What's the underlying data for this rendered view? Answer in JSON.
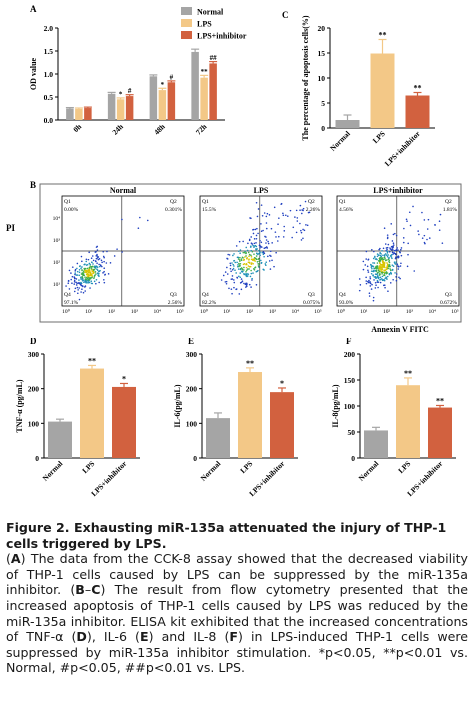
{
  "colors": {
    "normal": "#a5a5a5",
    "lps": "#f3c887",
    "inhibitor": "#d2613f"
  },
  "panel_a": {
    "letter": "A",
    "legend": [
      "Normal",
      "LPS",
      "LPS+inhibitor"
    ],
    "chart_data": {
      "type": "bar",
      "categories": [
        "0h",
        "24h",
        "48h",
        "72h"
      ],
      "series": [
        {
          "name": "Normal",
          "values": [
            0.25,
            0.57,
            0.95,
            1.48
          ],
          "errors": [
            0.02,
            0.03,
            0.03,
            0.06
          ]
        },
        {
          "name": "LPS",
          "values": [
            0.24,
            0.45,
            0.65,
            0.92
          ],
          "errors": [
            0.02,
            0.03,
            0.04,
            0.05
          ]
        },
        {
          "name": "LPS+inhibitor",
          "values": [
            0.26,
            0.52,
            0.82,
            1.23
          ],
          "errors": [
            0.02,
            0.03,
            0.03,
            0.04
          ]
        }
      ],
      "sig": [
        [
          "",
          "",
          ""
        ],
        [
          "",
          "*",
          "#"
        ],
        [
          "",
          "*",
          "#"
        ],
        [
          "",
          "**",
          "##"
        ]
      ],
      "ylabel": "OD value",
      "ylim": [
        0,
        2.0
      ],
      "yticks": [
        "0.0",
        "0.5",
        "1.0",
        "1.5",
        "2.0"
      ]
    }
  },
  "panel_c": {
    "letter": "C",
    "chart_data": {
      "type": "bar",
      "categories": [
        "Normal",
        "LPS",
        "LPS+inhibitor"
      ],
      "values": [
        1.6,
        14.9,
        6.5
      ],
      "errors": [
        1.0,
        2.8,
        0.6
      ],
      "sig": [
        "",
        "**",
        "**"
      ],
      "ylabel": "The percentage of apoptosis cells(%)",
      "ylim": [
        0,
        20
      ],
      "yticks": [
        "0",
        "5",
        "10",
        "15",
        "20"
      ]
    }
  },
  "panel_b": {
    "letter": "B",
    "groups": [
      {
        "title": "Normal",
        "q1": "0.00%",
        "q2": "0.301%",
        "q3": "2.56%",
        "q4": "97.1%"
      },
      {
        "title": "LPS",
        "q1": "15.5%",
        "q2": "2.26%",
        "q3": "0.075%",
        "q4": "82.2%"
      },
      {
        "title": "LPS+inhibitor",
        "q1": "4.56%",
        "q2": "1.81%",
        "q3": "0.672%",
        "q4": "93.0%"
      }
    ],
    "quad_labels": [
      "Q1",
      "Q2",
      "Q3",
      "Q4"
    ],
    "ylabel": "PI",
    "xlabel": "Annexin V FITC",
    "ticks": [
      "10⁰",
      "10¹",
      "10²",
      "10³",
      "10⁴",
      "10⁵"
    ]
  },
  "panels_def": [
    {
      "letter": "D",
      "chart_data": {
        "type": "bar",
        "categories": [
          "Normal",
          "LPS",
          "LPS+inhibitor"
        ],
        "values": [
          105,
          258,
          205
        ],
        "errors": [
          7,
          9,
          10
        ],
        "sig": [
          "",
          "**",
          "*"
        ],
        "ylabel": "TNF-α (pg/mL)",
        "ylim": [
          0,
          300
        ],
        "yticks": [
          "0",
          "100",
          "200",
          "300"
        ]
      }
    },
    {
      "letter": "E",
      "chart_data": {
        "type": "bar",
        "categories": [
          "Normal",
          "LPS",
          "LPS+inhibitor"
        ],
        "values": [
          115,
          248,
          190
        ],
        "errors": [
          15,
          12,
          12
        ],
        "sig": [
          "",
          "**",
          "*"
        ],
        "ylabel": "IL-6(pg/mL)",
        "ylim": [
          0,
          300
        ],
        "yticks": [
          "0",
          "100",
          "200",
          "300"
        ]
      }
    },
    {
      "letter": "F",
      "chart_data": {
        "type": "bar",
        "categories": [
          "Normal",
          "LPS",
          "LPS+inhibitor"
        ],
        "values": [
          53,
          140,
          97
        ],
        "errors": [
          6,
          14,
          4
        ],
        "sig": [
          "",
          "**",
          "**"
        ],
        "ylabel": "IL-8(pg/mL)",
        "ylim": [
          0,
          200
        ],
        "yticks": [
          "0",
          "50",
          "100",
          "150",
          "200"
        ]
      }
    }
  ],
  "caption": {
    "title": "Figure 2. Exhausting miR-135a attenuated the injury of THP-1 cells triggered by LPS.",
    "p_a1": "The data from the CCK-8 assay showed that the decreased viability of THP-1 cells caused by LPS can be suppressed by the miR-135a inhibitor.",
    "p_bc": "The result from flow cytometry presented that the increased apoptosis of THP-1 cells caused by LPS was reduced by the miR-135a inhibitor. ELISA kit exhibited that the increased concentrations of TNF-α",
    "p_e": ", IL-6",
    "p_f": "and IL-8",
    "p_end": "in LPS-induced THP-1 cells were suppressed by miR-135a inhibitor stimulation.",
    "stats": "*p<0.05, **p<0.01 vs. Normal, #p<0.05, ##p<0.01 vs. LPS."
  }
}
